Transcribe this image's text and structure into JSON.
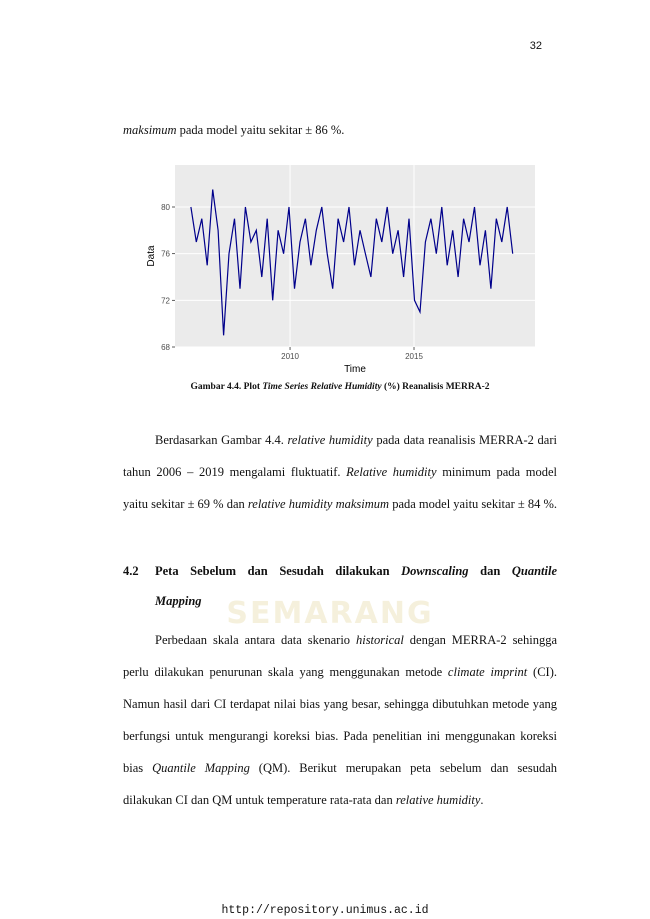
{
  "page_number": "32",
  "intro": {
    "runs": [
      {
        "text": "maksimum",
        "italic": true
      },
      {
        "text": " pada model yaitu sekitar ± 86 %.",
        "italic": false
      }
    ]
  },
  "figure": {
    "chart_data": {
      "type": "line",
      "x_label": "Time",
      "y_label": "Data",
      "color": "#00008b",
      "grid": true,
      "x": [
        2006.0,
        2006.22,
        2006.44,
        2006.66,
        2006.88,
        2007.1,
        2007.32,
        2007.54,
        2007.76,
        2007.98,
        2008.2,
        2008.42,
        2008.64,
        2008.86,
        2009.08,
        2009.3,
        2009.52,
        2009.74,
        2009.96,
        2010.18,
        2010.4,
        2010.62,
        2010.84,
        2011.06,
        2011.28,
        2011.5,
        2011.72,
        2011.94,
        2012.16,
        2012.38,
        2012.6,
        2012.82,
        2013.04,
        2013.26,
        2013.48,
        2013.7,
        2013.92,
        2014.14,
        2014.36,
        2014.58,
        2014.8,
        2015.02,
        2015.24,
        2015.46,
        2015.68,
        2015.9,
        2016.12,
        2016.34,
        2016.56,
        2016.78,
        2017.0,
        2017.22,
        2017.44,
        2017.66,
        2017.88,
        2018.1,
        2018.32,
        2018.54,
        2018.76,
        2018.98
      ],
      "values": [
        80,
        77,
        79,
        75,
        81.5,
        78,
        69,
        76,
        79,
        73,
        80,
        77,
        78,
        74,
        79,
        72,
        78,
        76,
        80,
        73,
        77,
        79,
        75,
        78,
        80,
        76,
        73,
        79,
        77,
        80,
        75,
        78,
        76,
        74,
        79,
        77,
        80,
        76,
        78,
        74,
        79,
        72,
        71,
        77,
        79,
        76,
        80,
        75,
        78,
        74,
        79,
        77,
        80,
        75,
        78,
        73,
        79,
        77,
        80,
        76
      ],
      "xlim": [
        2005.36,
        2019.88
      ],
      "xticks": [
        2010,
        2015
      ],
      "ylim": [
        68,
        83.6
      ],
      "yticks": [
        68,
        72,
        76,
        80
      ]
    },
    "caption": {
      "runs": [
        {
          "text": "Gambar 4.4.  Plot ",
          "italic": false
        },
        {
          "text": "Time Series Relative Humidity",
          "italic": true
        },
        {
          "text": " (%) Reanalisis MERRA-2",
          "italic": false
        }
      ]
    }
  },
  "paragraph_1": {
    "runs": [
      {
        "text": "Berdasarkan Gambar 4.4. ",
        "italic": false
      },
      {
        "text": "relative humidity",
        "italic": true
      },
      {
        "text": " pada data reanalisis MERRA-2 dari tahun 2006 – 2019 mengalami fluktuatif. ",
        "italic": false
      },
      {
        "text": "Relative humidity",
        "italic": true
      },
      {
        "text": " minimum pada model yaitu sekitar ± 69 % dan ",
        "italic": false
      },
      {
        "text": "relative humidity maksimum",
        "italic": true
      },
      {
        "text": " pada model yaitu sekitar ± 84 %.",
        "italic": false
      }
    ]
  },
  "heading": {
    "number": "4.2",
    "runs": [
      {
        "text": "Peta Sebelum dan Sesudah dilakukan ",
        "italic": false
      },
      {
        "text": "Downscaling",
        "italic": true
      },
      {
        "text": " dan ",
        "italic": false
      },
      {
        "text": "Quantile Mapping",
        "italic": true
      }
    ]
  },
  "paragraph_2": {
    "runs": [
      {
        "text": "Perbedaan skala antara data skenario ",
        "italic": false
      },
      {
        "text": "historical",
        "italic": true
      },
      {
        "text": " dengan MERRA-2 sehingga perlu dilakukan penurunan skala yang menggunakan metode ",
        "italic": false
      },
      {
        "text": "climate imprint",
        "italic": true
      },
      {
        "text": " (CI). Namun hasil dari CI terdapat nilai bias yang besar, sehingga dibutuhkan metode yang berfungsi untuk mengurangi koreksi bias. Pada penelitian ini menggunakan koreksi bias ",
        "italic": false
      },
      {
        "text": "Quantile Mapping",
        "italic": true
      },
      {
        "text": " (QM). Berikut merupakan peta sebelum dan sesudah dilakukan CI dan QM untuk temperature rata-rata dan ",
        "italic": false
      },
      {
        "text": "relative humidity",
        "italic": true
      },
      {
        "text": ".",
        "italic": false
      }
    ]
  },
  "watermark": "SEMARANG",
  "footer": "http://repository.unimus.ac.id"
}
